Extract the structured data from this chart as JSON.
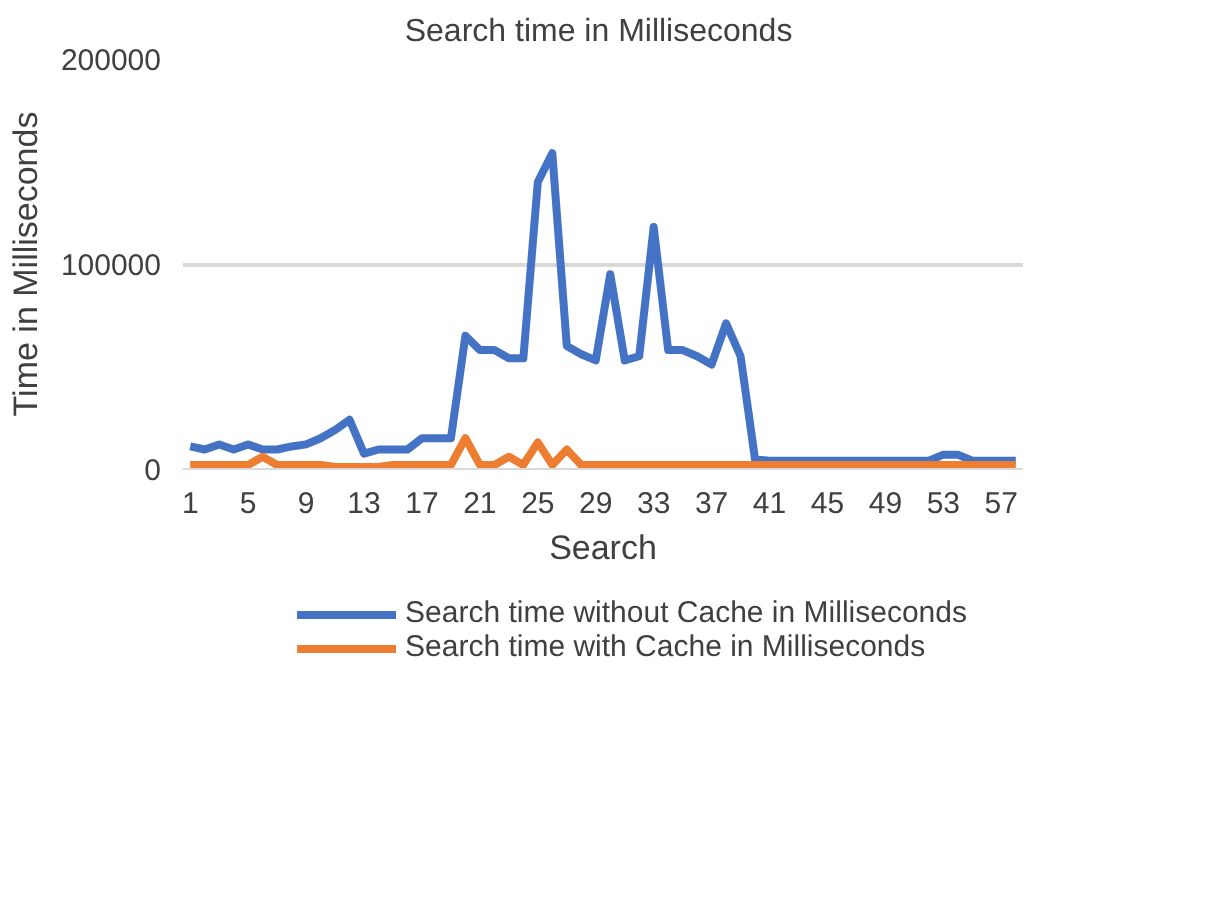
{
  "chart_data": {
    "type": "line",
    "title": "Search time  in Milliseconds",
    "xlabel": "Search",
    "ylabel": "Time in Milliseconds",
    "categories": [
      "1",
      null,
      null,
      null,
      "5",
      null,
      null,
      null,
      "9",
      null,
      null,
      null,
      "13",
      null,
      null,
      null,
      "17",
      null,
      null,
      null,
      "21",
      null,
      null,
      null,
      "25",
      null,
      null,
      null,
      "29",
      null,
      null,
      null,
      "33",
      null,
      null,
      null,
      "37",
      null,
      null,
      null,
      "41",
      null,
      null,
      null,
      "45",
      null,
      null,
      null,
      "49",
      null,
      null,
      null,
      "53",
      null,
      null,
      null,
      "57",
      null
    ],
    "series": [
      {
        "name": "Search time without Cache in Milliseconds",
        "color": "#4472c4",
        "values": [
          11000,
          9500,
          12000,
          9500,
          12000,
          9500,
          9500,
          11000,
          12000,
          15000,
          19000,
          24000,
          7500,
          9500,
          9500,
          9500,
          15000,
          15000,
          15000,
          65000,
          58000,
          58000,
          54000,
          54000,
          140000,
          154000,
          60000,
          56000,
          53000,
          95000,
          53000,
          55000,
          118000,
          58000,
          58000,
          55000,
          51000,
          71000,
          55000,
          4700,
          4000,
          4000,
          4000,
          4000,
          4000,
          4000,
          4000,
          4000,
          4000,
          4000,
          4000,
          4000,
          7000,
          7000,
          4000,
          4000,
          4000,
          4000
        ]
      },
      {
        "name": "Search time with Cache in Milliseconds",
        "color": "#ed7d31",
        "values": [
          2000,
          2000,
          2000,
          2000,
          2000,
          6000,
          2000,
          2000,
          2000,
          2000,
          1000,
          1000,
          1000,
          1000,
          2000,
          2000,
          2000,
          2000,
          2000,
          15000,
          2000,
          2000,
          6000,
          2000,
          13000,
          2000,
          9500,
          2000,
          2000,
          2000,
          2000,
          2000,
          2000,
          2000,
          2000,
          2000,
          2000,
          2000,
          2000,
          2000,
          2000,
          2000,
          2000,
          2000,
          2000,
          2000,
          2000,
          2000,
          2000,
          2000,
          2000,
          2000,
          2000,
          2000,
          2000,
          2000,
          2000,
          2000
        ]
      }
    ],
    "ylim": [
      0,
      200000
    ],
    "yticks": [
      0,
      100000,
      200000
    ],
    "grid": "y",
    "legend": "bottom",
    "line_style": "solid",
    "marker": "none"
  }
}
